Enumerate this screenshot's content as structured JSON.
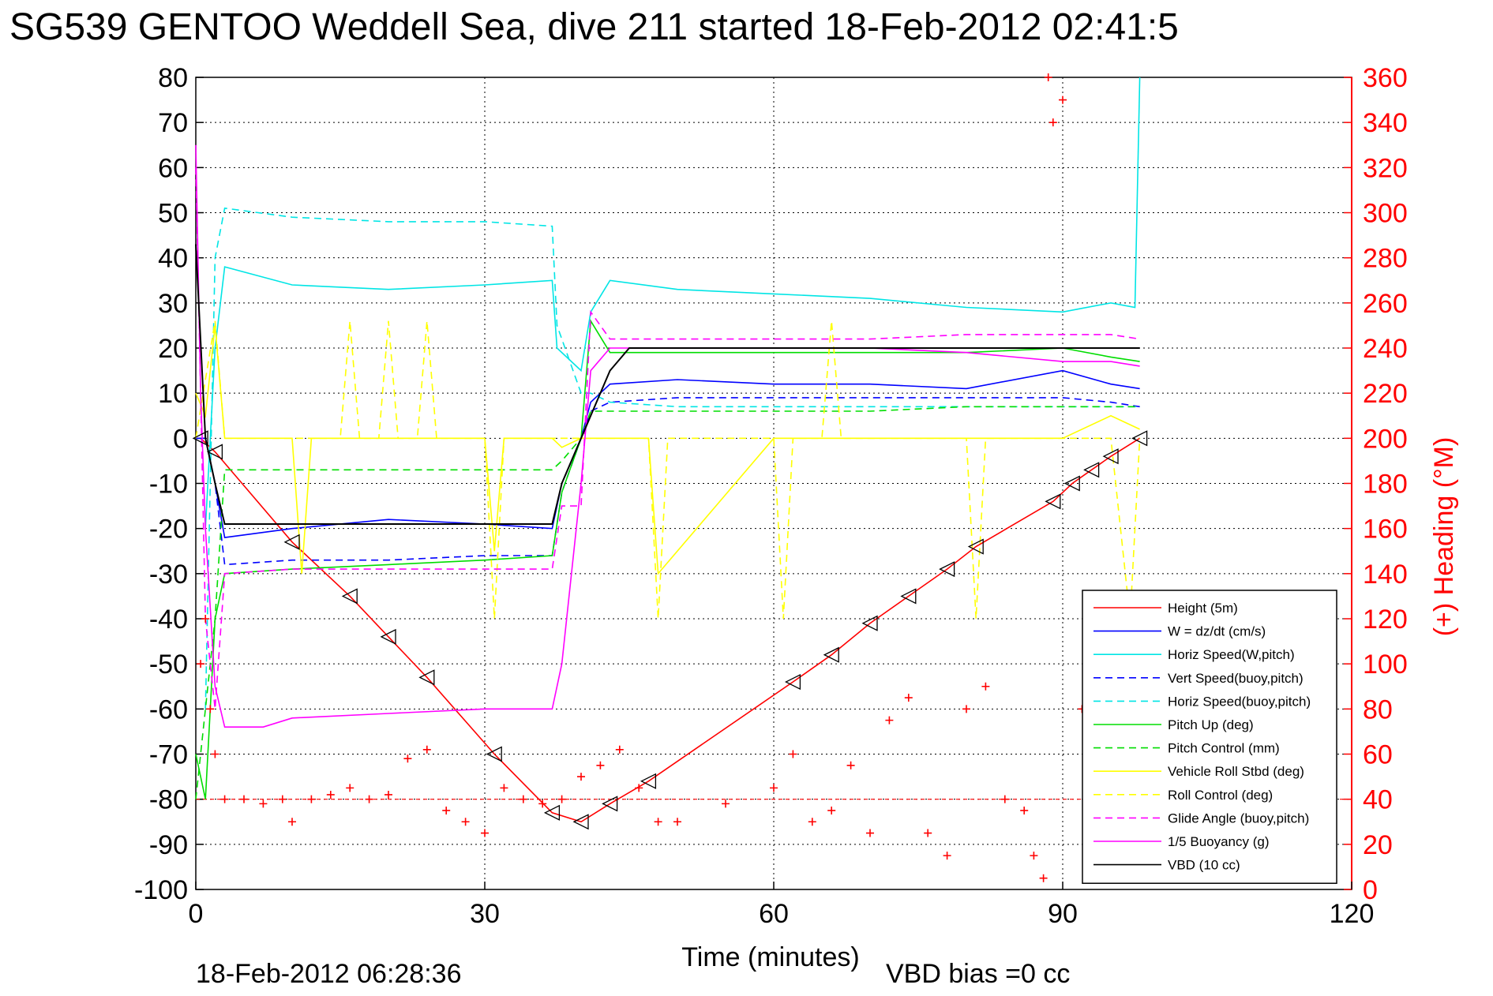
{
  "chart_data": {
    "type": "line",
    "title": "SG539 GENTOO Weddell Sea, dive 211 started 18-Feb-2012 02:41:5",
    "xlabel": "Time (minutes)",
    "ylabel": "",
    "y2label": "(+) Heading (°M)",
    "xlim": [
      0,
      120
    ],
    "ylim": [
      -100,
      80
    ],
    "y2lim": [
      0,
      360
    ],
    "xticks": [
      "0",
      "30",
      "60",
      "90",
      "120"
    ],
    "yticks": [
      "80",
      "70",
      "60",
      "50",
      "40",
      "30",
      "20",
      "10",
      "0",
      "-10",
      "-20",
      "-30",
      "-40",
      "-50",
      "-60",
      "-70",
      "-80",
      "-90",
      "-100"
    ],
    "y2ticks": [
      "360",
      "340",
      "320",
      "300",
      "280",
      "260",
      "240",
      "220",
      "200",
      "180",
      "160",
      "140",
      "120",
      "100",
      "80",
      "60",
      "40",
      "20",
      "0"
    ],
    "grid": true,
    "legend_position": "lower-right",
    "footer_timestamp": "18-Feb-2012 06:28:36",
    "footer_note": "VBD bias =0 cc",
    "heading_reference": 40,
    "series": [
      {
        "name": "Height (5m)",
        "color": "#ff0000",
        "dash": "solid",
        "x": [
          0.5,
          2,
          10,
          16,
          20,
          24,
          31,
          37,
          40,
          43,
          47,
          62,
          66,
          70,
          74,
          78,
          81,
          89,
          91,
          93,
          95,
          98
        ],
        "y": [
          0,
          -3,
          -23,
          -35,
          -44,
          -53,
          -70,
          -83,
          -85,
          -81,
          -76,
          -54,
          -48,
          -41,
          -35,
          -29,
          -24,
          -14,
          -10,
          -7,
          -4,
          0
        ]
      },
      {
        "name": "W = dz/dt (cm/s)",
        "color": "#0000ff",
        "dash": "solid",
        "x": [
          0,
          1,
          2,
          3,
          10,
          20,
          30,
          37,
          38,
          40,
          41,
          43,
          50,
          60,
          70,
          80,
          90,
          95,
          98
        ],
        "y": [
          0,
          0,
          -10,
          -22,
          -20,
          -18,
          -19,
          -20,
          -10,
          0,
          8,
          12,
          13,
          12,
          12,
          11,
          15,
          12,
          11
        ]
      },
      {
        "name": "Horiz Speed(W,pitch)",
        "color": "#00e5e5",
        "dash": "solid",
        "x": [
          1,
          2,
          3,
          10,
          20,
          30,
          37,
          37.5,
          40,
          41,
          43,
          50,
          60,
          70,
          80,
          90,
          95,
          97.5,
          98
        ],
        "y": [
          -20,
          20,
          38,
          34,
          33,
          34,
          35,
          20,
          15,
          28,
          35,
          33,
          32,
          31,
          29,
          28,
          30,
          29,
          80
        ]
      },
      {
        "name": "Vert Speed(buoy,pitch)",
        "color": "#0000ff",
        "dash": "dashed",
        "x": [
          0,
          1,
          2,
          3,
          10,
          20,
          30,
          37,
          38,
          40,
          41,
          43,
          50,
          60,
          70,
          80,
          90,
          95,
          98
        ],
        "y": [
          0,
          0,
          -10,
          -28,
          -27,
          -27,
          -26,
          -26,
          -12,
          0,
          6,
          8,
          9,
          9,
          9,
          9,
          9,
          8,
          7
        ]
      },
      {
        "name": "Horiz Speed(buoy,pitch)",
        "color": "#00e5e5",
        "dash": "dashed",
        "x": [
          1,
          2,
          3,
          10,
          20,
          30,
          37,
          37.5,
          40,
          41,
          43,
          50,
          60,
          70,
          80,
          90,
          95,
          98
        ],
        "y": [
          -60,
          40,
          51,
          49,
          48,
          48,
          47,
          25,
          10,
          10,
          8,
          7,
          7,
          7,
          7,
          7,
          7,
          7
        ]
      },
      {
        "name": "Pitch Up (deg)",
        "color": "#00dd00",
        "dash": "solid",
        "x": [
          0,
          1,
          2,
          3,
          10,
          20,
          30,
          37,
          38,
          40,
          41,
          43,
          50,
          60,
          70,
          80,
          90,
          95,
          98
        ],
        "y": [
          -70,
          -80,
          -40,
          -30,
          -29,
          -28,
          -27,
          -26,
          -12,
          0,
          26,
          19,
          19,
          19,
          19,
          19,
          20,
          18,
          17
        ]
      },
      {
        "name": "Pitch Control (mm)",
        "color": "#00dd00",
        "dash": "dashed",
        "x": [
          0,
          2,
          3,
          10,
          20,
          30,
          37,
          38,
          40,
          41,
          43,
          50,
          60,
          70,
          80,
          90,
          95,
          98
        ],
        "y": [
          -80,
          -40,
          -7,
          -7,
          -7,
          -7,
          -7,
          -5,
          0,
          6,
          6,
          6,
          6,
          6,
          7,
          7,
          7,
          7
        ]
      },
      {
        "name": "Vehicle Roll Stbd (deg)",
        "color": "#ffff00",
        "dash": "solid",
        "x": [
          0,
          1,
          2,
          3,
          10,
          11,
          12,
          20,
          30,
          31,
          32,
          37,
          38,
          40,
          43,
          47,
          48,
          60,
          70,
          80,
          90,
          95,
          98
        ],
        "y": [
          10,
          5,
          25,
          0,
          0,
          -30,
          0,
          0,
          0,
          -25,
          0,
          0,
          -2,
          0,
          0,
          0,
          -30,
          0,
          0,
          0,
          0,
          5,
          2
        ]
      },
      {
        "name": "Roll Control (deg)",
        "color": "#ffff00",
        "dash": "dashed",
        "x": [
          0,
          2,
          3,
          15,
          16,
          17,
          19,
          20,
          21,
          23,
          24,
          25,
          30,
          31,
          32,
          40,
          47,
          48,
          49,
          60,
          61,
          62,
          65,
          66,
          67,
          70,
          80,
          81,
          82,
          90,
          95,
          97,
          98
        ],
        "y": [
          0,
          26,
          0,
          0,
          26,
          0,
          0,
          26,
          0,
          0,
          26,
          0,
          0,
          -40,
          0,
          0,
          0,
          -40,
          0,
          0,
          -40,
          0,
          0,
          26,
          0,
          0,
          0,
          -40,
          0,
          0,
          0,
          -40,
          0
        ]
      },
      {
        "name": "Glide Angle (buoy,pitch)",
        "color": "#ff00ff",
        "dash": "dashed",
        "x": [
          0,
          1,
          2,
          3,
          10,
          20,
          30,
          37,
          38,
          40,
          41,
          43,
          50,
          60,
          70,
          80,
          90,
          95,
          98
        ],
        "y": [
          60,
          -40,
          -60,
          -30,
          -29,
          -29,
          -29,
          -29,
          -15,
          -15,
          28,
          22,
          22,
          22,
          22,
          23,
          23,
          23,
          22
        ]
      },
      {
        "name": "1/5 Buoyancy (g)",
        "color": "#ff00ff",
        "dash": "solid",
        "x": [
          0,
          0.5,
          1,
          2,
          3,
          7,
          10,
          20,
          30,
          37,
          38,
          40,
          41,
          43,
          50,
          60,
          70,
          80,
          90,
          95,
          98
        ],
        "y": [
          65,
          10,
          -20,
          -55,
          -64,
          -64,
          -62,
          -61,
          -60,
          -60,
          -50,
          -10,
          15,
          20,
          20,
          20,
          20,
          19,
          17,
          17,
          16
        ]
      },
      {
        "name": "VBD (10 cc)",
        "color": "#000000",
        "dash": "solid",
        "x": [
          0,
          1,
          2,
          3,
          10,
          20,
          30,
          37,
          38,
          40,
          43,
          45,
          50,
          60,
          70,
          80,
          90,
          95,
          98
        ],
        "y": [
          43,
          0,
          -10,
          -19,
          -19,
          -19,
          -19,
          -19,
          -10,
          0,
          15,
          20,
          20,
          20,
          20,
          20,
          20,
          20,
          20
        ]
      }
    ],
    "heading_series": {
      "name": "(+) Heading",
      "color": "#ff0000",
      "marker": "+",
      "x": [
        0.5,
        1,
        1.5,
        2,
        3,
        5,
        7,
        9,
        10,
        12,
        14,
        16,
        18,
        20,
        22,
        24,
        26,
        28,
        30,
        32,
        34,
        36,
        38,
        40,
        42,
        44,
        46,
        48,
        50,
        55,
        60,
        62,
        64,
        66,
        68,
        70,
        72,
        74,
        76,
        78,
        80,
        82,
        84,
        86,
        87,
        88,
        88.5,
        89,
        90,
        92
      ],
      "y": [
        100,
        120,
        80,
        60,
        40,
        40,
        38,
        40,
        30,
        40,
        42,
        45,
        40,
        42,
        58,
        62,
        35,
        30,
        25,
        45,
        40,
        38,
        40,
        50,
        55,
        62,
        45,
        30,
        30,
        38,
        45,
        60,
        30,
        35,
        55,
        25,
        75,
        85,
        25,
        15,
        80,
        90,
        40,
        35,
        15,
        5,
        360,
        340,
        350,
        80
      ]
    }
  }
}
